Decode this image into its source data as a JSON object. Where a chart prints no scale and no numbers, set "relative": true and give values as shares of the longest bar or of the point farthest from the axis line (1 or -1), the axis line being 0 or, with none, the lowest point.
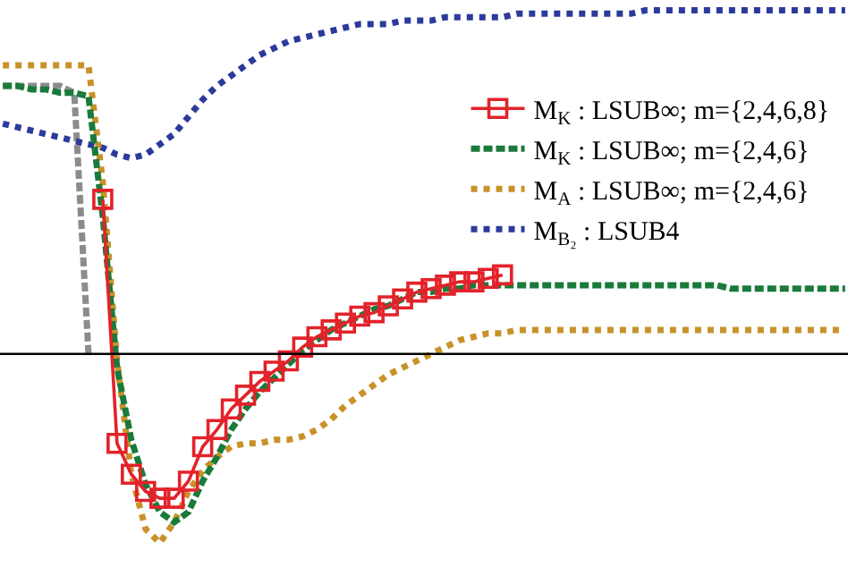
{
  "chart_data": {
    "type": "line",
    "relative": true,
    "legend": "top right",
    "categories": [
      null,
      null,
      null,
      null,
      null,
      null,
      null,
      null,
      null,
      null,
      null,
      null,
      null,
      null,
      null,
      null,
      null,
      null,
      null,
      null,
      null,
      null,
      null,
      null,
      null,
      null,
      null,
      null,
      null,
      null,
      null,
      null,
      null,
      null,
      null,
      null,
      null,
      null,
      null,
      null,
      null,
      null,
      null,
      null,
      null,
      null,
      null,
      null,
      null,
      null,
      null,
      null,
      null,
      null,
      null,
      null,
      null,
      null,
      null,
      null
    ],
    "series": [
      {
        "name": "M$_{K}$ : LSUB∞; m={2,4,6,8}",
        "color": "#e3222a",
        "line_style": "solid",
        "marker": "square",
        "values": [
          null,
          null,
          null,
          null,
          null,
          null,
          null,
          0.45,
          -0.26,
          -0.35,
          -0.4,
          -0.42,
          -0.42,
          -0.37,
          -0.27,
          -0.22,
          -0.16,
          -0.12,
          -0.08,
          -0.05,
          -0.02,
          0.02,
          0.05,
          0.07,
          0.09,
          0.11,
          0.12,
          0.14,
          0.16,
          0.18,
          0.19,
          0.2,
          0.21,
          0.21,
          0.22,
          0.23,
          null,
          null,
          null,
          null,
          null,
          null,
          null,
          null,
          null,
          null,
          null,
          null,
          null,
          null,
          null,
          null,
          null,
          null,
          null,
          null,
          null,
          null,
          null,
          null
        ]
      },
      {
        "name": "M$_{K}$ : LSUB∞; m={2,4,6}",
        "color": "#1a7a3a",
        "line_style": "dashed",
        "marker": "none",
        "values": [
          0.78,
          0.78,
          0.77,
          0.77,
          0.76,
          0.76,
          0.75,
          0.4,
          -0.04,
          -0.25,
          -0.38,
          -0.46,
          -0.49,
          -0.46,
          -0.37,
          -0.3,
          -0.22,
          -0.16,
          -0.11,
          -0.07,
          -0.03,
          0.01,
          0.04,
          0.07,
          0.09,
          0.11,
          0.13,
          0.14,
          0.16,
          0.18,
          0.18,
          0.19,
          0.19,
          0.2,
          0.2,
          0.2,
          0.2,
          0.2,
          0.2,
          0.2,
          0.2,
          0.2,
          0.2,
          0.2,
          0.2,
          0.2,
          0.2,
          0.2,
          0.2,
          0.2,
          0.2,
          0.19,
          0.19,
          0.19,
          0.19,
          0.19,
          0.19,
          0.19,
          0.19,
          0.19
        ]
      },
      {
        "name": "M$_{A}$ : LSUB∞; m={2,4,6}",
        "color": "#c8922a",
        "line_style": "dotted",
        "marker": "none",
        "values": [
          0.84,
          0.84,
          0.84,
          0.84,
          0.84,
          0.84,
          0.84,
          0.5,
          -0.02,
          -0.35,
          -0.51,
          -0.55,
          -0.49,
          -0.4,
          -0.34,
          -0.3,
          -0.27,
          -0.26,
          -0.26,
          -0.25,
          -0.25,
          -0.24,
          -0.22,
          -0.19,
          -0.15,
          -0.12,
          -0.09,
          -0.06,
          -0.04,
          -0.02,
          0,
          0.02,
          0.04,
          0.05,
          0.06,
          0.06,
          0.07,
          0.07,
          0.07,
          0.07,
          0.07,
          0.07,
          0.07,
          0.07,
          0.07,
          0.07,
          0.07,
          0.07,
          0.07,
          0.07,
          0.07,
          0.07,
          0.07,
          0.07,
          0.07,
          0.07,
          0.07,
          0.07,
          0.07,
          0.07
        ]
      },
      {
        "name": "M$_{B₂}$ : LSUB4",
        "color": "#2b3a9b",
        "line_style": "dotted",
        "marker": "none",
        "values": [
          0.67,
          0.66,
          0.65,
          0.64,
          0.63,
          0.62,
          0.61,
          0.6,
          0.58,
          0.57,
          0.58,
          0.61,
          0.64,
          0.69,
          0.74,
          0.78,
          0.81,
          0.84,
          0.87,
          0.89,
          0.91,
          0.92,
          0.93,
          0.94,
          0.95,
          0.96,
          0.96,
          0.96,
          0.97,
          0.97,
          0.97,
          0.98,
          0.98,
          0.98,
          0.98,
          0.98,
          0.99,
          0.99,
          0.99,
          0.99,
          0.99,
          0.99,
          0.99,
          0.99,
          0.99,
          1,
          1,
          1,
          1,
          1,
          1,
          1,
          1,
          1,
          1,
          1,
          1,
          1,
          1,
          1
        ]
      },
      {
        "color": "#8c8c8c",
        "line_style": "dashed",
        "marker": "none",
        "values": [
          0.78,
          0.78,
          0.78,
          0.78,
          0.78,
          0.76,
          0,
          null,
          null,
          null,
          null,
          null,
          null,
          null,
          null,
          null,
          null,
          null,
          null,
          null,
          null,
          null,
          null,
          null,
          null,
          null,
          null,
          null,
          null,
          null,
          null,
          null,
          null,
          null,
          null,
          null,
          null,
          null,
          null,
          null,
          null,
          null,
          null,
          null,
          null,
          null,
          null,
          null,
          null,
          null,
          null,
          null,
          null,
          null,
          null,
          null,
          null,
          null,
          null,
          null
        ]
      }
    ]
  }
}
